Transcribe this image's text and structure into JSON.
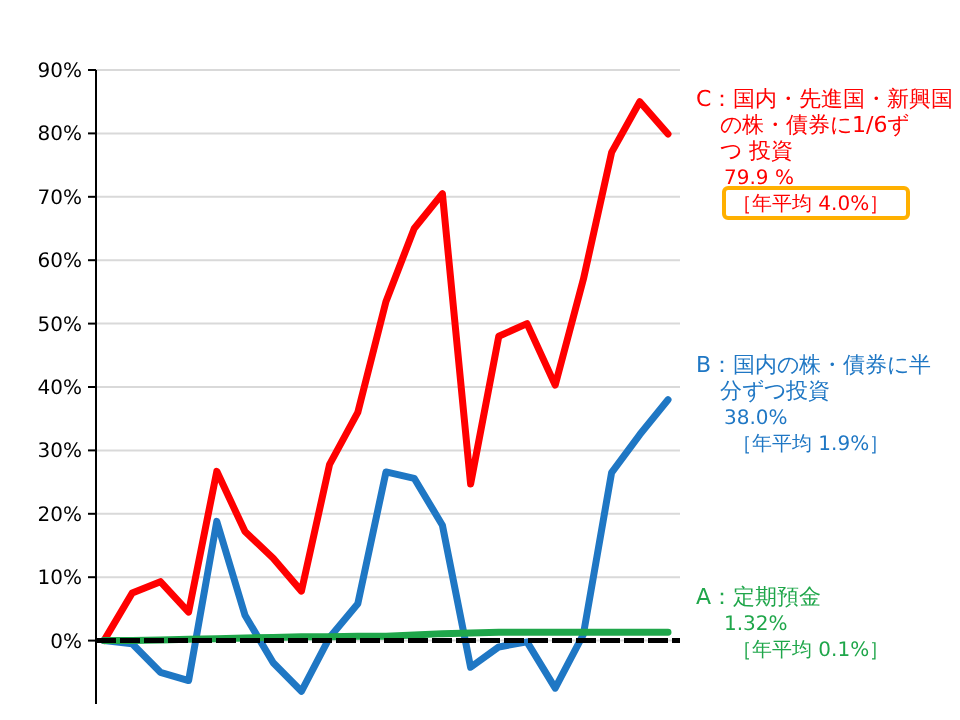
{
  "chart_data": {
    "type": "line",
    "categories": [
      null,
      null,
      null,
      null,
      null,
      null,
      null,
      null,
      null,
      null,
      null,
      null,
      null,
      null,
      null,
      null,
      null,
      null,
      null,
      null,
      null
    ],
    "series": [
      {
        "name": "C：国内・先進国・新興国の株・債券に1/6ずつ 投資",
        "color": "#ff0000",
        "values": [
          0,
          7.5,
          9.3,
          4.5,
          26.7,
          17.2,
          13,
          7.8,
          27.8,
          36,
          53.5,
          65,
          70.5,
          24.7,
          48,
          50,
          40.3,
          57,
          77,
          85,
          79.9
        ]
      },
      {
        "name": "B：国内の株・債券に半分ずつ投資",
        "color": "#1f77c4",
        "values": [
          0,
          -0.5,
          -5,
          -6.3,
          18.8,
          4,
          -3.5,
          -8,
          0.5,
          5.8,
          26.6,
          25.6,
          18.2,
          -4.2,
          -1,
          -0.2,
          -7.5,
          1,
          26.5,
          32.5,
          38
        ]
      },
      {
        "name": "A：定期預金",
        "color": "#1fa64a",
        "values": [
          0,
          0,
          0.1,
          0.2,
          0.3,
          0.4,
          0.5,
          0.6,
          0.6,
          0.7,
          0.7,
          0.9,
          1.1,
          1.2,
          1.3,
          1.3,
          1.3,
          1.3,
          1.3,
          1.3,
          1.32
        ]
      }
    ],
    "annotations": [
      "79.9 %",
      "［年平均 4.0%］",
      "38.0%",
      "［年平均 1.9%］",
      "1.32%",
      "［年平均 0.1%］"
    ],
    "ref_lines": [
      {
        "axis": "y",
        "value": 0,
        "color": "#000000",
        "line_style": "dashed"
      }
    ],
    "ylim": [
      -10,
      90
    ],
    "yticks": [
      {
        "value": 0,
        "label": "0%"
      },
      {
        "value": 10,
        "label": "10%"
      },
      {
        "value": 20,
        "label": "20%"
      },
      {
        "value": 30,
        "label": "30%"
      },
      {
        "value": 40,
        "label": "40%"
      },
      {
        "value": 50,
        "label": "50%"
      },
      {
        "value": 60,
        "label": "60%"
      },
      {
        "value": 70,
        "label": "70%"
      },
      {
        "value": 80,
        "label": "80%"
      },
      {
        "value": 90,
        "label": "90%"
      }
    ],
    "grid": "y",
    "legend": false,
    "marker": "none",
    "line_style": "solid"
  }
}
